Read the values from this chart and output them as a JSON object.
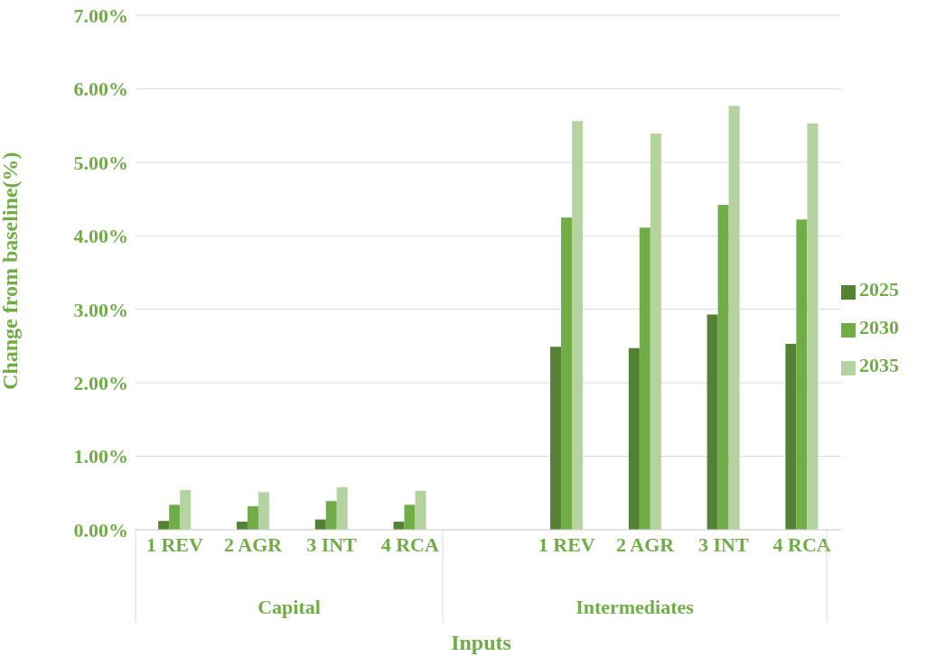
{
  "chart_data": {
    "type": "bar",
    "xlabel": "Inputs",
    "ylabel": "Change from baseline(%)",
    "categories": [
      "1 REV",
      "2 AGR",
      "3 INT",
      "4 RCA",
      null,
      "1 REV",
      "2 AGR",
      "3 INT",
      "4 RCA"
    ],
    "annotations": [
      "Capital",
      "Intermediates"
    ],
    "series": [
      {
        "name": "2025",
        "color": "#548235",
        "values": [
          0.12,
          0.11,
          0.14,
          0.11,
          null,
          2.49,
          2.47,
          2.93,
          2.53
        ]
      },
      {
        "name": "2030",
        "color": "#70ad47",
        "values": [
          0.34,
          0.32,
          0.39,
          0.34,
          null,
          4.25,
          4.11,
          4.42,
          4.22
        ]
      },
      {
        "name": "2035",
        "color": "#b4d3a0",
        "values": [
          0.54,
          0.51,
          0.58,
          0.53,
          null,
          5.56,
          5.39,
          5.77,
          5.53
        ]
      }
    ],
    "ylim": [
      0,
      7
    ],
    "yticks": [
      {
        "value": 0,
        "label": "0.00%"
      },
      {
        "value": 1,
        "label": "1.00%"
      },
      {
        "value": 2,
        "label": "2.00%"
      },
      {
        "value": 3,
        "label": "3.00%"
      },
      {
        "value": 4,
        "label": "4.00%"
      },
      {
        "value": 5,
        "label": "5.00%"
      },
      {
        "value": 6,
        "label": "6.00%"
      },
      {
        "value": 7,
        "label": "7.00%"
      }
    ],
    "grid": "y",
    "legend": "right"
  }
}
